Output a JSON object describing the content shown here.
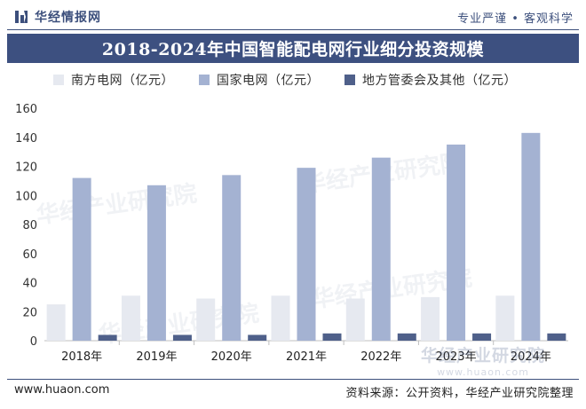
{
  "header": {
    "logo_text": "华经情报网",
    "slogan": "专业严谨 • 客观科学"
  },
  "chart_data": {
    "type": "bar",
    "title": "2018-2024年中国智能配电网行业细分投资规模",
    "categories": [
      "2018年",
      "2019年",
      "2020年",
      "2021年",
      "2022年",
      "2023年",
      "2024年"
    ],
    "series": [
      {
        "name": "南方电网（亿元）",
        "color": "#e6e9f0",
        "values": [
          25,
          31,
          29,
          31,
          29,
          30,
          31
        ]
      },
      {
        "name": "国家电网（亿元）",
        "color": "#a4b2d2",
        "values": [
          112,
          107,
          114,
          119,
          126,
          135,
          143
        ]
      },
      {
        "name": "地方管委会及其他（亿元）",
        "color": "#4f608a",
        "values": [
          4,
          4,
          4,
          5,
          5,
          5,
          5
        ]
      }
    ],
    "ylim": [
      0,
      160
    ],
    "yticks": [
      0,
      20,
      40,
      60,
      80,
      100,
      120,
      140,
      160
    ],
    "grid": false,
    "legend": "top-left"
  },
  "watermark": {
    "cn": "华经产业研究院",
    "en": "www.huaon.com"
  },
  "footer": {
    "website": "www.huaon.com",
    "source": "资料来源：公开资料，华经产业研究院整理"
  }
}
